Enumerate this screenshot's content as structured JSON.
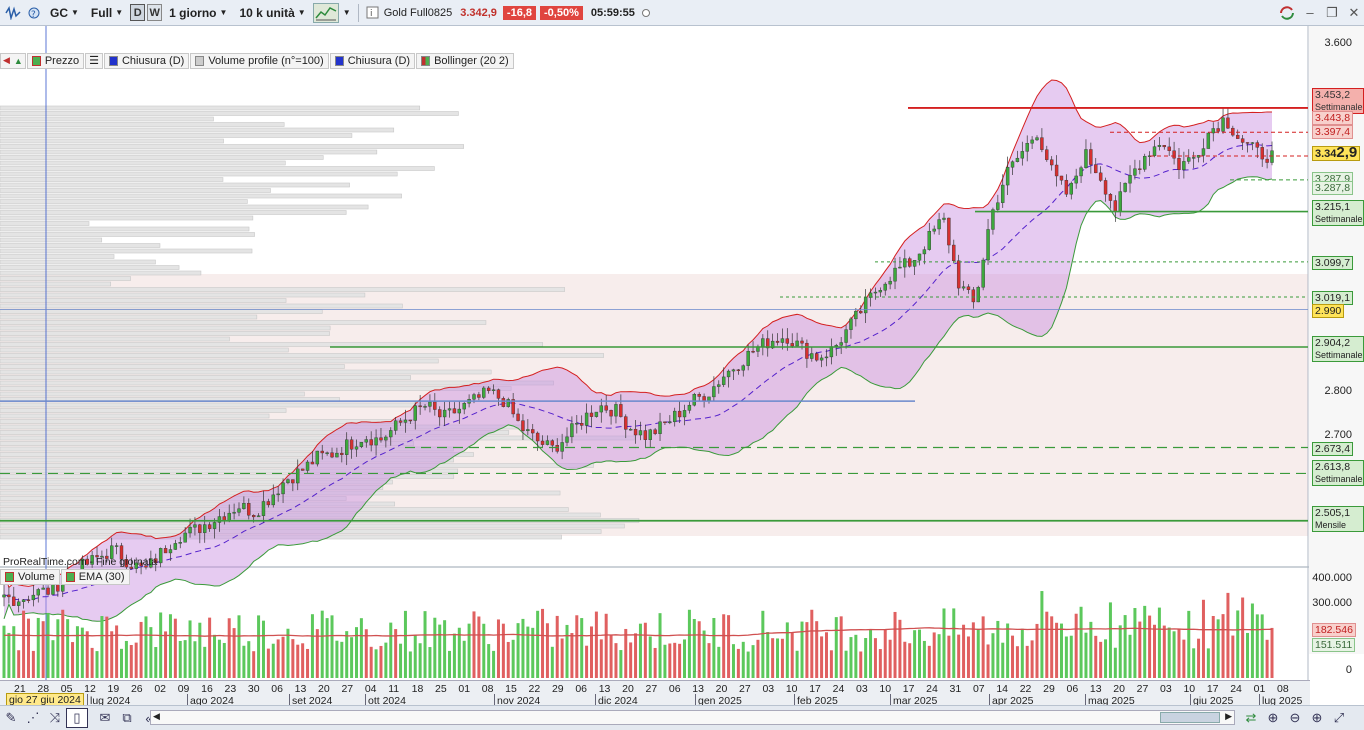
{
  "toolbar": {
    "symbol": "GC",
    "mode": "Full",
    "d_button": "D",
    "w_button": "W",
    "timeframe": "1 giorno",
    "units": "10 k unità",
    "instrument": "Gold Full0825",
    "last_price": "3.342,9",
    "change": "-16,8",
    "change_pct": "-0,50%",
    "time": "05:59:55",
    "colors": {
      "change_bg": "#e0453f",
      "accent": "#1f5fa8"
    }
  },
  "legend": {
    "items": [
      "Prezzo",
      "Chiusura (D)",
      "Volume profile (n°=100)",
      "Chiusura (D)",
      "Bollinger (20 2)"
    ]
  },
  "price_axis": {
    "ticks": [
      "3.600",
      "2.800",
      "2.700"
    ],
    "labels": [
      {
        "value": "3.453,2",
        "sub": "Settimanale",
        "style": "red"
      },
      {
        "value": "3.443,8",
        "sub": "",
        "style": "pink"
      },
      {
        "value": "3.397,4",
        "sub": "",
        "style": "pink"
      },
      {
        "value": "3.34",
        "big": "2,9",
        "sub": "",
        "style": "yellow"
      },
      {
        "value": "3.287,9",
        "sub": "",
        "style": "lgreen"
      },
      {
        "value": "3.287,8",
        "sub": "",
        "style": "lgreen"
      },
      {
        "value": "3.215,1",
        "sub": "Settimanale",
        "style": "green"
      },
      {
        "value": "3.099,7",
        "sub": "",
        "style": "green"
      },
      {
        "value": "3.019,1",
        "sub": "",
        "style": "green"
      },
      {
        "value": "2.990",
        "sub": "",
        "style": "yellow"
      },
      {
        "value": "2.904,2",
        "sub": "Settimanale",
        "style": "green"
      },
      {
        "value": "2.673,4",
        "sub": "",
        "style": "green"
      },
      {
        "value": "2.613,8",
        "sub": "Settimanale",
        "style": "green"
      },
      {
        "value": "2.505,1",
        "sub": "Mensile",
        "style": "green"
      }
    ]
  },
  "watermark": "ProRealTime.com - Fine giornata",
  "volume_legend": {
    "items": [
      "Volume",
      "EMA (30)"
    ]
  },
  "volume_axis": {
    "ticks": [
      "400.000",
      "300.000",
      "0"
    ],
    "labels": [
      "182.546",
      "151.511"
    ]
  },
  "xaxis": {
    "cursor_date": "gio 27 giu 2024",
    "days": [
      "21",
      "28",
      "05",
      "12",
      "19",
      "26",
      "02",
      "09",
      "16",
      "23",
      "30",
      "06",
      "13",
      "20",
      "27",
      "04",
      "11",
      "18",
      "25",
      "01",
      "08",
      "15",
      "22",
      "29",
      "06",
      "13",
      "20",
      "27",
      "06",
      "13",
      "20",
      "27",
      "03",
      "10",
      "17",
      "24",
      "03",
      "10",
      "17",
      "24",
      "31",
      "07",
      "14",
      "22",
      "29",
      "06",
      "13",
      "20",
      "27",
      "03",
      "10",
      "17",
      "24",
      "01",
      "08"
    ],
    "months": [
      "lug 2024",
      "ago 2024",
      "set 2024",
      "ott 2024",
      "nov 2024",
      "dic 2024",
      "gen 2025",
      "feb 2025",
      "mar 2025",
      "apr 2025",
      "mag 2025",
      "giu 2025",
      "lug 2025"
    ]
  },
  "chart_data": {
    "type": "line",
    "price_ohlc_close_approx": [
      2330,
      2325,
      2340,
      2345,
      2380,
      2400,
      2420,
      2440,
      2410,
      2390,
      2430,
      2470,
      2480,
      2500,
      2520,
      2540,
      2525,
      2560,
      2600,
      2620,
      2650,
      2660,
      2680,
      2700,
      2690,
      2720,
      2750,
      2770,
      2740,
      2760,
      2780,
      2800,
      2780,
      2720,
      2690,
      2670,
      2700,
      2740,
      2770,
      2760,
      2720,
      2700,
      2720,
      2750,
      2780,
      2800,
      2840,
      2870,
      2900,
      2920,
      2930,
      2900,
      2880,
      2900,
      2950,
      3000,
      3050,
      3080,
      3100,
      3150,
      3200,
      3050,
      3000,
      3200,
      3300,
      3350,
      3400,
      3300,
      3250,
      3350,
      3300,
      3220,
      3300,
      3350,
      3380,
      3320,
      3340,
      3400,
      3430,
      3380,
      3350,
      3343
    ],
    "reference_levels": [
      3453.2,
      3443.8,
      3397.4,
      3342.9,
      3287.9,
      3287.8,
      3215.1,
      3099.7,
      3019.1,
      2990,
      2904.2,
      2673.4,
      2613.8,
      2505.1
    ],
    "indicators": [
      "Bollinger (20 2)",
      "Volume profile (n°=100)",
      "EMA (30)"
    ],
    "volume_ema": [
      182546,
      151511
    ]
  }
}
